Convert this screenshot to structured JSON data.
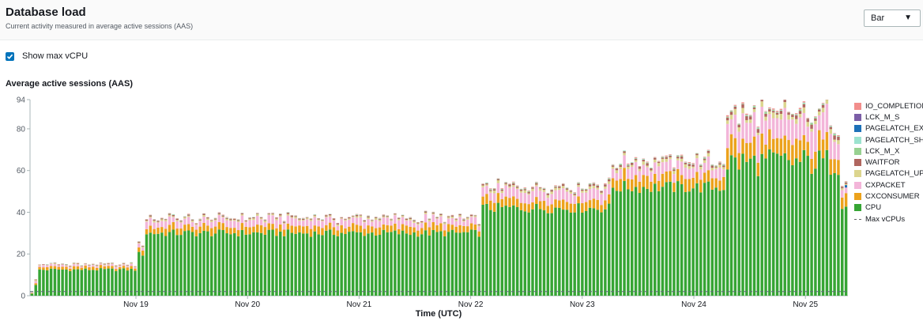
{
  "header": {
    "title": "Database load",
    "subtitle": "Current activity measured in average active sessions (AAS)",
    "view_select": "Bar",
    "select_caret": "▼"
  },
  "options": {
    "show_max_vcpu_label": "Show max vCPU",
    "show_max_vcpu_checked": true
  },
  "chart_data": {
    "type": "bar",
    "stacked": true,
    "title": "Average active sessions (AAS)",
    "xlabel": "Time (UTC)",
    "ylabel": "",
    "ylim": [
      0,
      94
    ],
    "yticks": [
      0,
      20,
      40,
      60,
      80,
      94
    ],
    "xticks": [
      "Nov 19",
      "Nov 20",
      "Nov 21",
      "Nov 22",
      "Nov 23",
      "Nov 24",
      "Nov 25"
    ],
    "grid": false,
    "legend_position": "right",
    "bar_count": 214,
    "series": [
      {
        "name": "IO_COMPLETION",
        "color": "#f28e8c"
      },
      {
        "name": "LCK_M_S",
        "color": "#7b5ea7"
      },
      {
        "name": "PAGELATCH_EX",
        "color": "#1d71b8"
      },
      {
        "name": "PAGELATCH_SH",
        "color": "#9ce3cf"
      },
      {
        "name": "LCK_M_X",
        "color": "#98d191"
      },
      {
        "name": "WAITFOR",
        "color": "#b0665f"
      },
      {
        "name": "PAGELATCH_UP",
        "color": "#dcd58e"
      },
      {
        "name": "CXPACKET",
        "color": "#f3b5d9"
      },
      {
        "name": "CXCONSUMER",
        "color": "#eca21c"
      },
      {
        "name": "CPU",
        "color": "#36a534"
      }
    ],
    "max_vcpu": {
      "name": "Max vCPUs",
      "value": 2
    },
    "segments": [
      {
        "from": 0,
        "to": 1,
        "cpu": 1,
        "cxconsumer": 0.3,
        "cxpacket": 0.3,
        "other": 0.4
      },
      {
        "from": 1,
        "to": 2,
        "cpu": 5,
        "cxconsumer": 1,
        "cxpacket": 1,
        "other": 1
      },
      {
        "from": 2,
        "to": 28,
        "cpu": 12.5,
        "cxconsumer": 1.2,
        "cxpacket": 0.8,
        "other": 0.7
      },
      {
        "from": 28,
        "to": 30,
        "cpu": 20,
        "cxconsumer": 2,
        "cxpacket": 1.5,
        "other": 1
      },
      {
        "from": 30,
        "to": 118,
        "cpu": 30,
        "cxconsumer": 3,
        "cxpacket": 3,
        "other": 1.5
      },
      {
        "from": 118,
        "to": 152,
        "cpu": 42,
        "cxconsumer": 4,
        "cxpacket": 4,
        "other": 2.5
      },
      {
        "from": 152,
        "to": 182,
        "cpu": 52,
        "cxconsumer": 5,
        "cxpacket": 5,
        "other": 3
      },
      {
        "from": 182,
        "to": 212,
        "cpu": 64,
        "cxconsumer": 8,
        "cxpacket": 10,
        "other": 5
      },
      {
        "from": 212,
        "to": 214,
        "cpu": 44,
        "cxconsumer": 5,
        "cxpacket": 4,
        "other": 2
      }
    ]
  }
}
